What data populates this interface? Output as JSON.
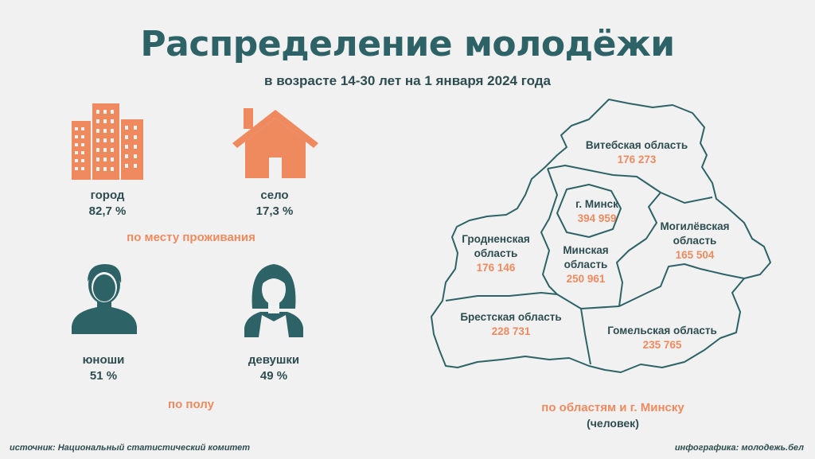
{
  "header": {
    "title": "Распределение молодёжи",
    "subtitle": "в возрасте 14-30 лет на 1 января 2024 года"
  },
  "residence": {
    "city": {
      "label": "город",
      "value": "82,7 %"
    },
    "village": {
      "label": "село",
      "value": "17,3 %"
    },
    "caption": "по месту проживания"
  },
  "gender": {
    "male": {
      "label": "юноши",
      "value": "51 %"
    },
    "female": {
      "label": "девушки",
      "value": "49 %"
    },
    "caption": "по полу"
  },
  "regions": {
    "vitebsk": {
      "name": "Витебская область",
      "value": "176 273"
    },
    "minsk_city": {
      "name": "г. Минск",
      "value": "394 959"
    },
    "mogilev": {
      "name_1": "Могилёвская",
      "name_2": "область",
      "value": "165 504"
    },
    "grodno": {
      "name_1": "Гродненская",
      "name_2": "область",
      "value": "176 146"
    },
    "minsk_region": {
      "name_1": "Минская",
      "name_2": "область",
      "value": "250 961"
    },
    "brest": {
      "name": "Брестская область",
      "value": "228 731"
    },
    "gomel": {
      "name": "Гомельская область",
      "value": "235 765"
    },
    "caption": "по областям и г. Минску",
    "unit": "(человек)"
  },
  "footer": {
    "source": "источник: Национальный статистический комитет",
    "credit": "инфографика: молодежь.бел"
  },
  "colors": {
    "teal": "#2d6367",
    "orange": "#ef8a5f",
    "background": "#f1f1f1"
  }
}
